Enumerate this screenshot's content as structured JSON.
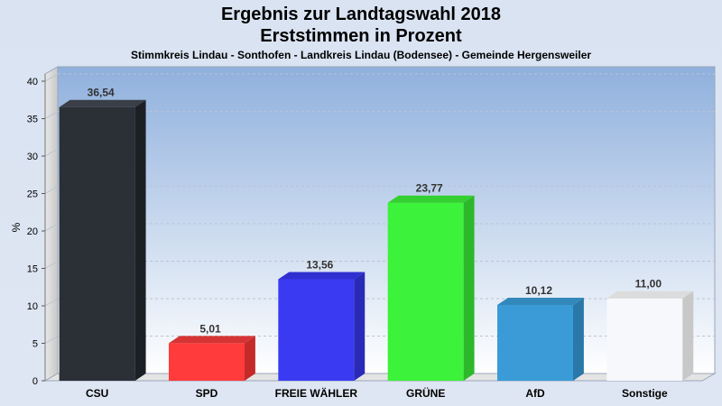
{
  "chart_data": {
    "type": "bar",
    "title_line1": "Ergebnis zur Landtagswahl 2018",
    "title_line2": "Erststimmen in Prozent",
    "subtitle": "Stimmkreis Lindau - Sonthofen - Landkreis Lindau (Bodensee) - Gemeinde Hergensweiler",
    "ylabel": "%",
    "ylim": [
      0,
      40
    ],
    "yticks": [
      0,
      5,
      10,
      15,
      20,
      25,
      30,
      35,
      40
    ],
    "categories": [
      "CSU",
      "SPD",
      "FREIE WÄHLER",
      "GRÜNE",
      "AfD",
      "Sonstige"
    ],
    "values": [
      36.54,
      5.01,
      13.56,
      23.77,
      10.12,
      11.0
    ],
    "value_labels": [
      "36,54",
      "5,01",
      "13,56",
      "23,77",
      "10,12",
      "11,00"
    ],
    "colors": [
      "#2b2f36",
      "#ff3b3b",
      "#3a3af2",
      "#3df23a",
      "#3a9bd6",
      "#f7f8fc"
    ],
    "side_colors": [
      "#1c1f24",
      "#c42a2a",
      "#2a2ab8",
      "#2cb82a",
      "#2a78a8",
      "#c8c8c8"
    ],
    "top_colors": [
      "#3a3f47",
      "#d63434",
      "#3030d0",
      "#34d031",
      "#3388bb",
      "#dcdcdc"
    ],
    "grid": true,
    "legend": "none"
  }
}
